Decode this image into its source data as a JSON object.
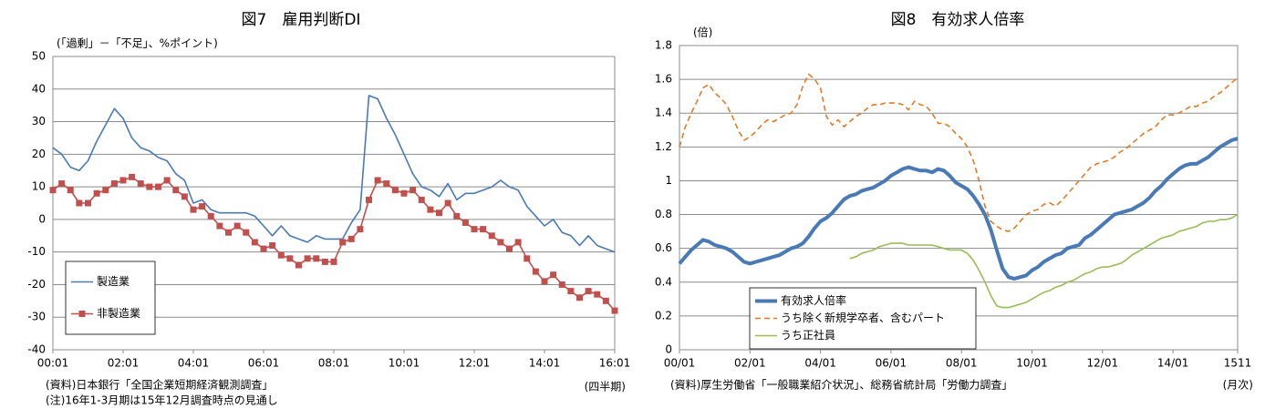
{
  "chart_data": [
    {
      "type": "line",
      "title": "図7　雇用判断DI",
      "y_label": "(「過剰」－「不足」、%ポイント)",
      "x_label": "(四半期)",
      "notes": [
        "(資料)日本銀行「全国企業短期経済観測調査」",
        "(注)16年1-3月期は15年12月調査時点の見通し"
      ],
      "categories": [
        "00:01",
        null,
        null,
        null,
        null,
        null,
        null,
        null,
        "02:01",
        null,
        null,
        null,
        null,
        null,
        null,
        null,
        "04:01",
        null,
        null,
        null,
        null,
        null,
        null,
        null,
        "06:01",
        null,
        null,
        null,
        null,
        null,
        null,
        null,
        "08:01",
        null,
        null,
        null,
        null,
        null,
        null,
        null,
        "10:01",
        null,
        null,
        null,
        null,
        null,
        null,
        null,
        "12:01",
        null,
        null,
        null,
        null,
        null,
        null,
        null,
        "14:01",
        null,
        null,
        null,
        null,
        null,
        null,
        null,
        "16:01"
      ],
      "ylim": [
        -40,
        50
      ],
      "yticks": [
        -40,
        -30,
        -20,
        -10,
        0,
        10,
        20,
        30,
        40,
        50
      ],
      "grid": true,
      "legend": "lower left",
      "series": [
        {
          "name": "製造業",
          "color": "#4a7ab5",
          "values": [
            22,
            20,
            16,
            15,
            18,
            24,
            29,
            34,
            31,
            25,
            22,
            21,
            19,
            18,
            14,
            12,
            5,
            6,
            3,
            2,
            2,
            2,
            2,
            1,
            -2,
            -5,
            -2,
            -5,
            -6,
            -7,
            -5,
            -6,
            -6,
            -6,
            -1,
            3,
            38,
            37,
            31,
            26,
            20,
            14,
            10,
            9,
            7,
            11,
            6,
            8,
            8,
            9,
            10,
            12,
            10,
            9,
            4,
            1,
            -2,
            0,
            -4,
            -5,
            -8,
            -5,
            -8,
            -9,
            -10
          ]
        },
        {
          "name": "非製造業",
          "color": "#c0504d",
          "marker": "square",
          "values": [
            9,
            11,
            9,
            5,
            5,
            8,
            9,
            11,
            12,
            13,
            11,
            10,
            10,
            12,
            9,
            7,
            3,
            4,
            1,
            -2,
            -4,
            -2,
            -4,
            -7,
            -9,
            -8,
            -11,
            -12,
            -14,
            -12,
            -12,
            -13,
            -13,
            -7,
            -6,
            -3,
            6,
            12,
            11,
            9,
            8,
            9,
            6,
            3,
            2,
            5,
            1,
            -1,
            -3,
            -3,
            -5,
            -7,
            -9,
            -7,
            -12,
            -16,
            -19,
            -17,
            -20,
            -22,
            -24,
            -22,
            -23,
            -25,
            -28
          ]
        }
      ]
    },
    {
      "type": "line",
      "title": "図8　有効求人倍率",
      "y_label": "(倍)",
      "x_label": "(月次)",
      "notes": [
        "(資料)厚生労働省「一般職業紹介状況」、総務省統計局「労働力調査」"
      ],
      "categories": [
        "00/01",
        null,
        null,
        null,
        null,
        null,
        null,
        null,
        null,
        null,
        null,
        null,
        "02/01",
        null,
        null,
        null,
        null,
        null,
        null,
        null,
        null,
        null,
        null,
        null,
        "04/01",
        null,
        null,
        null,
        null,
        null,
        null,
        null,
        null,
        null,
        null,
        null,
        "06/01",
        null,
        null,
        null,
        null,
        null,
        null,
        null,
        null,
        null,
        null,
        null,
        "08/01",
        null,
        null,
        null,
        null,
        null,
        null,
        null,
        null,
        null,
        null,
        null,
        "10/01",
        null,
        null,
        null,
        null,
        null,
        null,
        null,
        null,
        null,
        null,
        null,
        "12/01",
        null,
        null,
        null,
        null,
        null,
        null,
        null,
        null,
        null,
        null,
        null,
        "14/01",
        null,
        null,
        null,
        null,
        null,
        null,
        null,
        null,
        null,
        null,
        "1511"
      ],
      "ylim": [
        0,
        1.8
      ],
      "yticks": [
        0,
        0.2,
        0.4,
        0.6,
        0.8,
        1,
        1.2,
        1.4,
        1.6,
        1.8
      ],
      "grid": true,
      "legend": "lower left",
      "series": [
        {
          "name": "有効求人倍率",
          "color": "#4a7ab5",
          "width": 4,
          "values": [
            0.51,
            0.55,
            0.59,
            0.62,
            0.65,
            0.64,
            0.62,
            0.61,
            0.6,
            0.58,
            0.55,
            0.52,
            0.51,
            0.52,
            0.53,
            0.54,
            0.55,
            0.56,
            0.58,
            0.6,
            0.61,
            0.63,
            0.67,
            0.72,
            0.76,
            0.78,
            0.81,
            0.85,
            0.89,
            0.91,
            0.92,
            0.94,
            0.95,
            0.96,
            0.98,
            1.0,
            1.03,
            1.05,
            1.07,
            1.08,
            1.07,
            1.06,
            1.06,
            1.05,
            1.07,
            1.06,
            1.03,
            0.99,
            0.97,
            0.95,
            0.91,
            0.86,
            0.8,
            0.71,
            0.59,
            0.48,
            0.43,
            0.42,
            0.43,
            0.44,
            0.47,
            0.49,
            0.52,
            0.54,
            0.56,
            0.57,
            0.6,
            0.61,
            0.62,
            0.66,
            0.68,
            0.71,
            0.74,
            0.77,
            0.8,
            0.81,
            0.82,
            0.83,
            0.85,
            0.87,
            0.9,
            0.94,
            0.97,
            1.01,
            1.04,
            1.07,
            1.09,
            1.1,
            1.1,
            1.12,
            1.14,
            1.17,
            1.2,
            1.22,
            1.24,
            1.25
          ]
        },
        {
          "name": "うち除く新規学卒者、含むパート",
          "color": "#e07b2a",
          "line_style": "dashed",
          "values": [
            1.2,
            1.32,
            1.4,
            1.47,
            1.55,
            1.57,
            1.52,
            1.49,
            1.45,
            1.38,
            1.3,
            1.24,
            1.26,
            1.29,
            1.33,
            1.36,
            1.35,
            1.37,
            1.39,
            1.4,
            1.45,
            1.56,
            1.63,
            1.6,
            1.55,
            1.38,
            1.33,
            1.36,
            1.32,
            1.35,
            1.38,
            1.4,
            1.43,
            1.45,
            1.45,
            1.46,
            1.46,
            1.46,
            1.45,
            1.42,
            1.47,
            1.45,
            1.44,
            1.4,
            1.34,
            1.34,
            1.32,
            1.28,
            1.25,
            1.2,
            1.12,
            1.0,
            0.85,
            0.76,
            0.73,
            0.71,
            0.7,
            0.72,
            0.76,
            0.8,
            0.82,
            0.83,
            0.86,
            0.87,
            0.85,
            0.88,
            0.92,
            0.96,
            1.0,
            1.04,
            1.08,
            1.1,
            1.11,
            1.12,
            1.14,
            1.17,
            1.19,
            1.22,
            1.25,
            1.28,
            1.3,
            1.32,
            1.36,
            1.39,
            1.39,
            1.4,
            1.42,
            1.44,
            1.44,
            1.46,
            1.47,
            1.5,
            1.52,
            1.55,
            1.58,
            1.61
          ]
        },
        {
          "name": "うち正社員",
          "color": "#9bbb59",
          "values": [
            null,
            null,
            null,
            null,
            null,
            null,
            null,
            null,
            null,
            null,
            null,
            null,
            null,
            null,
            null,
            null,
            null,
            null,
            null,
            null,
            null,
            null,
            null,
            null,
            null,
            null,
            null,
            null,
            null,
            0.54,
            0.55,
            0.57,
            0.58,
            0.59,
            0.61,
            0.62,
            0.63,
            0.63,
            0.63,
            0.62,
            0.62,
            0.62,
            0.62,
            0.62,
            0.61,
            0.6,
            0.59,
            0.59,
            0.59,
            0.57,
            0.53,
            0.47,
            0.4,
            0.32,
            0.26,
            0.25,
            0.25,
            0.26,
            0.27,
            0.28,
            0.3,
            0.32,
            0.34,
            0.35,
            0.37,
            0.38,
            0.4,
            0.41,
            0.43,
            0.45,
            0.46,
            0.48,
            0.49,
            0.49,
            0.5,
            0.51,
            0.53,
            0.56,
            0.58,
            0.6,
            0.62,
            0.64,
            0.66,
            0.67,
            0.68,
            0.7,
            0.71,
            0.72,
            0.73,
            0.75,
            0.76,
            0.76,
            0.77,
            0.77,
            0.78,
            0.8
          ]
        }
      ]
    }
  ]
}
